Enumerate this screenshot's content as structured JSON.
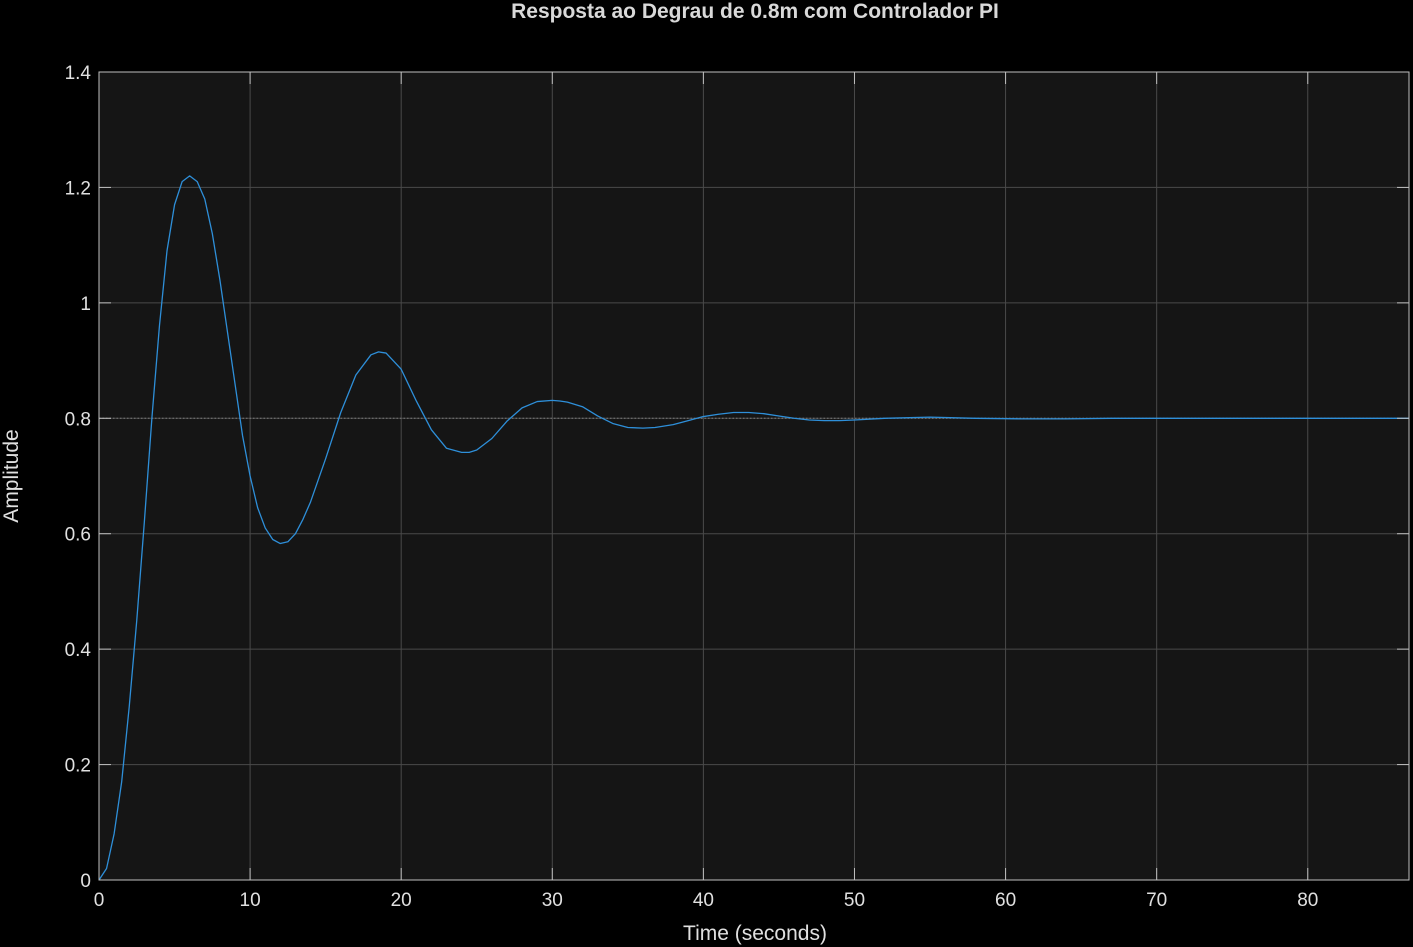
{
  "window": {
    "title": "Resposta ao Degrau de 0.8m com Controlador PI"
  },
  "colors": {
    "background": "#000000",
    "plot_area": "#151515",
    "grid": "#4a4a4a",
    "axis": "#bfbfbf",
    "series": "#2e8fd9",
    "reference": "#7a7a7a",
    "text": "#e0e0e0"
  },
  "chart_data": {
    "type": "line",
    "title": "Resposta ao Degrau de 0.8m com Controlador PI",
    "xlabel": "Time (seconds)",
    "ylabel": "Amplitude",
    "xlim": [
      0,
      86.7
    ],
    "ylim": [
      0,
      1.4
    ],
    "x_ticks": [
      0,
      10,
      20,
      30,
      40,
      50,
      60,
      70,
      80
    ],
    "y_ticks": [
      0,
      0.2,
      0.4,
      0.6,
      0.8,
      1,
      1.2,
      1.4
    ],
    "x_tick_labels": [
      "0",
      "10",
      "20",
      "30",
      "40",
      "50",
      "60",
      "70",
      "80"
    ],
    "y_tick_labels": [
      "0",
      "0.2",
      "0.4",
      "0.6",
      "0.8",
      "1",
      "1.2",
      "1.4"
    ],
    "grid": true,
    "reference_line": {
      "y": 0.8,
      "style": "dotted"
    },
    "series": [
      {
        "x": [
          0,
          0.5,
          1,
          1.5,
          2,
          2.5,
          3,
          3.5,
          4,
          4.5,
          5,
          5.5,
          6,
          6.5,
          7,
          7.5,
          8,
          8.5,
          9,
          9.5,
          10,
          10.5,
          11,
          11.5,
          12,
          12.5,
          13,
          13.5,
          14,
          15,
          16,
          17,
          18,
          18.5,
          19,
          20,
          21,
          22,
          23,
          24,
          24.5,
          25,
          26,
          27,
          28,
          29,
          30,
          30.5,
          31,
          32,
          33,
          34,
          35,
          36,
          36.8,
          38,
          39,
          40,
          41,
          42,
          43,
          44,
          45,
          46,
          47,
          48,
          49,
          50,
          52,
          55,
          58,
          61,
          64,
          67,
          70,
          75,
          80,
          86.7
        ],
        "y": [
          0,
          0.02,
          0.08,
          0.17,
          0.3,
          0.45,
          0.62,
          0.8,
          0.96,
          1.09,
          1.17,
          1.21,
          1.22,
          1.21,
          1.18,
          1.12,
          1.04,
          0.95,
          0.86,
          0.77,
          0.7,
          0.645,
          0.61,
          0.59,
          0.583,
          0.586,
          0.6,
          0.625,
          0.655,
          0.73,
          0.81,
          0.875,
          0.91,
          0.915,
          0.913,
          0.885,
          0.83,
          0.78,
          0.748,
          0.741,
          0.741,
          0.745,
          0.765,
          0.795,
          0.818,
          0.829,
          0.831,
          0.83,
          0.828,
          0.82,
          0.804,
          0.791,
          0.784,
          0.783,
          0.784,
          0.789,
          0.796,
          0.803,
          0.807,
          0.81,
          0.81,
          0.808,
          0.804,
          0.8,
          0.797,
          0.796,
          0.796,
          0.797,
          0.8,
          0.802,
          0.8,
          0.799,
          0.799,
          0.8,
          0.8,
          0.8,
          0.8,
          0.8
        ]
      }
    ]
  }
}
